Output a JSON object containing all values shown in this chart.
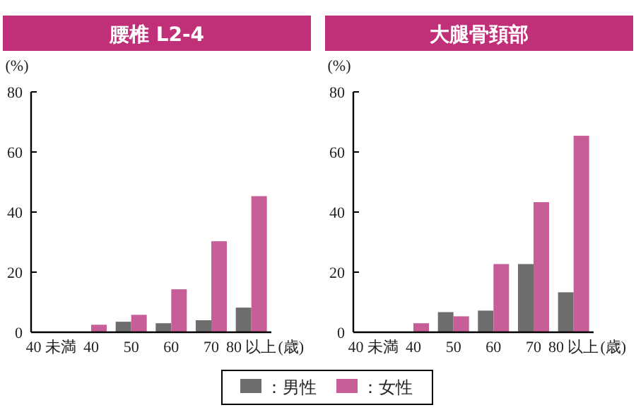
{
  "chart_data": [
    {
      "type": "bar",
      "title": "腰椎 L2-4",
      "ylabel": "(%)",
      "xlabel": "(歳)",
      "categories": [
        "40 未満",
        "40",
        "50",
        "60",
        "70",
        "80 以上"
      ],
      "ylim": [
        0,
        80
      ],
      "yticks": [
        0,
        20,
        40,
        60,
        80
      ],
      "legend": "bottom",
      "series": [
        {
          "name": "：男性",
          "color": "#6d6d6d",
          "values": [
            0,
            0,
            3.5,
            3,
            4,
            8.2
          ]
        },
        {
          "name": "：女性",
          "color": "#c85e98",
          "values": [
            0,
            2.5,
            5.8,
            14.3,
            30.3,
            45.3
          ]
        }
      ]
    },
    {
      "type": "bar",
      "title": "大腿骨頚部",
      "ylabel": "(%)",
      "xlabel": "(歳)",
      "categories": [
        "40 未満",
        "40",
        "50",
        "60",
        "70",
        "80 以上"
      ],
      "ylim": [
        0,
        80
      ],
      "yticks": [
        0,
        20,
        40,
        60,
        80
      ],
      "series": [
        {
          "color": "#6d6d6d",
          "values": [
            0,
            0,
            6.7,
            7.2,
            22.7,
            13.3
          ]
        },
        {
          "color": "#c85e98",
          "values": [
            0,
            3,
            5.3,
            22.7,
            43.3,
            65.4
          ]
        }
      ]
    }
  ]
}
